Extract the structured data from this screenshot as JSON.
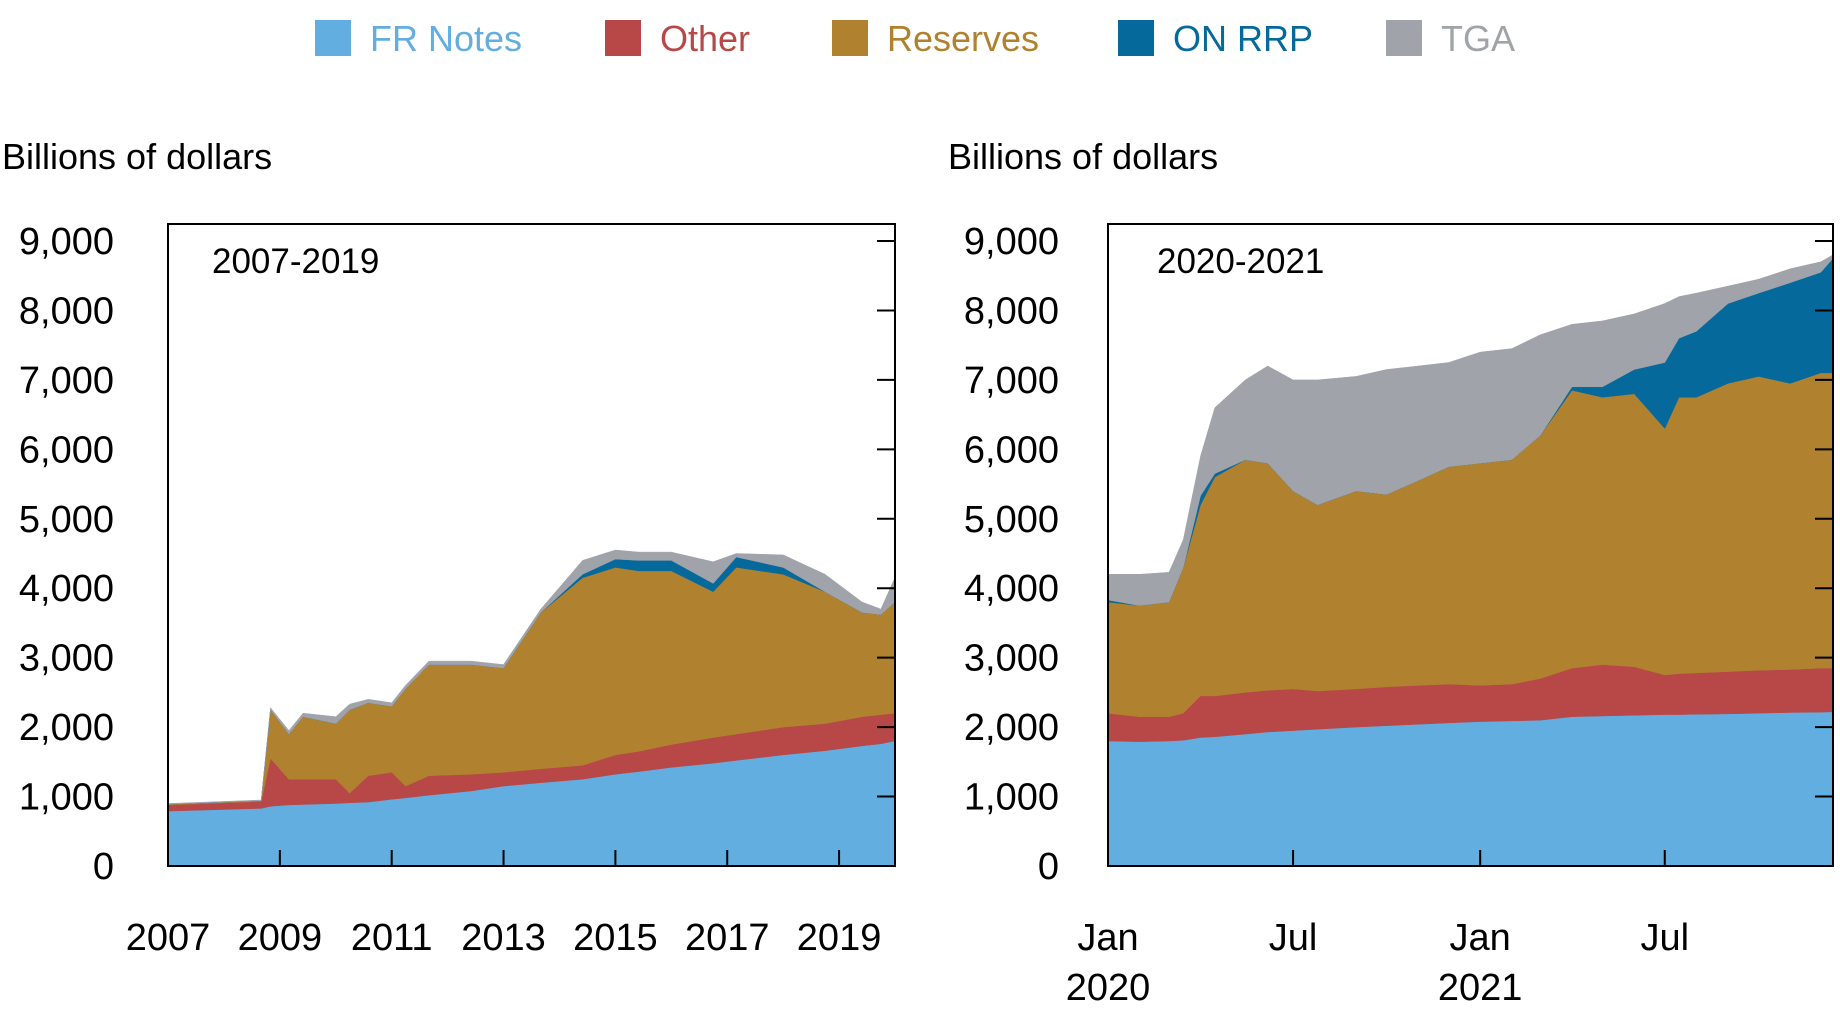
{
  "legend": [
    {
      "label": "FR Notes",
      "color": "#62aee0"
    },
    {
      "label": "Other",
      "color": "#b84848"
    },
    {
      "label": "Reserves",
      "color": "#b0812e"
    },
    {
      "label": "ON RRP",
      "color": "#06699c"
    },
    {
      "label": "TGA",
      "color": "#a0a3aa"
    }
  ],
  "chart_data": [
    {
      "type": "area",
      "stacked": true,
      "panel_label": "2007-2019",
      "ylabel": "Billions of dollars",
      "ylim": [
        0,
        9000
      ],
      "xlim": [
        "2007-01-01",
        "2020-01-01"
      ],
      "yticks": [
        "0",
        "1,000",
        "2,000",
        "3,000",
        "4,000",
        "5,000",
        "6,000",
        "7,000",
        "8,000",
        "9,000"
      ],
      "xticks": [
        {
          "date": "2007-01-01",
          "label": [
            "2007"
          ]
        },
        {
          "date": "2009-01-01",
          "label": [
            "2009"
          ]
        },
        {
          "date": "2011-01-01",
          "label": [
            "2011"
          ]
        },
        {
          "date": "2013-01-01",
          "label": [
            "2013"
          ]
        },
        {
          "date": "2015-01-01",
          "label": [
            "2015"
          ]
        },
        {
          "date": "2017-01-01",
          "label": [
            "2017"
          ]
        },
        {
          "date": "2019-01-01",
          "label": [
            "2019"
          ]
        }
      ],
      "x": [
        "2007-01-01",
        "2008-09-01",
        "2008-11-01",
        "2009-03-01",
        "2009-06-01",
        "2010-01-01",
        "2010-04-01",
        "2010-08-01",
        "2011-01-01",
        "2011-04-01",
        "2011-09-01",
        "2012-06-01",
        "2013-01-01",
        "2013-09-01",
        "2014-06-01",
        "2015-01-01",
        "2015-06-01",
        "2016-01-01",
        "2016-10-01",
        "2017-03-01",
        "2018-01-01",
        "2018-10-01",
        "2019-06-01",
        "2019-10-01",
        "2019-12-31"
      ],
      "series": [
        {
          "name": "FR Notes",
          "values": [
            790,
            830,
            860,
            880,
            885,
            900,
            910,
            920,
            960,
            980,
            1020,
            1080,
            1150,
            1200,
            1250,
            1320,
            1360,
            1420,
            1480,
            1520,
            1600,
            1660,
            1730,
            1760,
            1800
          ]
        },
        {
          "name": "Other",
          "values": [
            90,
            100,
            690,
            370,
            365,
            350,
            140,
            380,
            390,
            170,
            280,
            240,
            200,
            200,
            200,
            280,
            290,
            330,
            370,
            380,
            400,
            390,
            420,
            420,
            400
          ]
        },
        {
          "name": "Reserves",
          "values": [
            10,
            10,
            700,
            650,
            900,
            800,
            1200,
            1050,
            950,
            1400,
            1600,
            1580,
            1500,
            2250,
            2700,
            2700,
            2600,
            2500,
            2100,
            2400,
            2200,
            1900,
            1500,
            1440,
            1600
          ]
        },
        {
          "name": "ON RRP",
          "values": [
            0,
            0,
            0,
            0,
            0,
            0,
            0,
            0,
            0,
            0,
            0,
            0,
            0,
            0,
            50,
            120,
            150,
            150,
            120,
            150,
            100,
            0,
            0,
            0,
            0
          ]
        },
        {
          "name": "TGA",
          "values": [
            10,
            10,
            30,
            50,
            50,
            100,
            80,
            50,
            50,
            50,
            50,
            50,
            50,
            50,
            200,
            130,
            120,
            120,
            310,
            50,
            180,
            250,
            150,
            80,
            350
          ]
        }
      ]
    },
    {
      "type": "area",
      "stacked": true,
      "panel_label": "2020-2021",
      "ylabel": "Billions of dollars",
      "ylim": [
        0,
        9000
      ],
      "xlim": [
        "2020-01-01",
        "2021-12-13"
      ],
      "yticks": [
        "0",
        "1,000",
        "2,000",
        "3,000",
        "4,000",
        "5,000",
        "6,000",
        "7,000",
        "8,000",
        "9,000"
      ],
      "xticks": [
        {
          "date": "2020-01-01",
          "label": [
            "Jan",
            "2020"
          ]
        },
        {
          "date": "2020-07-01",
          "label": [
            "Jul"
          ]
        },
        {
          "date": "2021-01-01",
          "label": [
            "Jan",
            "2021"
          ]
        },
        {
          "date": "2021-07-01",
          "label": [
            "Jul"
          ]
        }
      ],
      "x": [
        "2020-01-01",
        "2020-02-01",
        "2020-03-01",
        "2020-03-15",
        "2020-04-01",
        "2020-04-15",
        "2020-05-15",
        "2020-06-06",
        "2020-07-01",
        "2020-07-25",
        "2020-09-01",
        "2020-10-01",
        "2020-11-01",
        "2020-12-01",
        "2021-01-01",
        "2021-02-01",
        "2021-03-01",
        "2021-04-01",
        "2021-05-01",
        "2021-06-01",
        "2021-07-01",
        "2021-07-15",
        "2021-08-01",
        "2021-09-01",
        "2021-10-01",
        "2021-11-01",
        "2021-12-01",
        "2021-12-13"
      ],
      "series": [
        {
          "name": "FR Notes",
          "values": [
            1800,
            1790,
            1800,
            1810,
            1850,
            1860,
            1900,
            1930,
            1950,
            1970,
            2000,
            2020,
            2040,
            2060,
            2080,
            2090,
            2100,
            2150,
            2160,
            2170,
            2180,
            2180,
            2185,
            2190,
            2200,
            2210,
            2215,
            2220
          ]
        },
        {
          "name": "Other",
          "values": [
            400,
            360,
            350,
            390,
            600,
            590,
            600,
            600,
            600,
            550,
            550,
            560,
            560,
            560,
            520,
            530,
            600,
            700,
            740,
            700,
            570,
            590,
            595,
            610,
            620,
            620,
            635,
            630
          ]
        },
        {
          "name": "Reserves",
          "values": [
            1600,
            1600,
            1650,
            2100,
            2750,
            3150,
            3350,
            3270,
            2850,
            2680,
            2850,
            2770,
            2950,
            3130,
            3200,
            3230,
            3500,
            4000,
            3850,
            3930,
            3550,
            3980,
            3970,
            4150,
            4230,
            4120,
            4250,
            4250
          ]
        },
        {
          "name": "ON RRP",
          "values": [
            30,
            0,
            0,
            0,
            130,
            50,
            0,
            0,
            0,
            0,
            0,
            0,
            0,
            0,
            0,
            0,
            0,
            50,
            150,
            350,
            950,
            850,
            950,
            1150,
            1200,
            1450,
            1450,
            1650
          ]
        },
        {
          "name": "TGA",
          "values": [
            370,
            450,
            430,
            400,
            570,
            950,
            1150,
            1400,
            1600,
            1800,
            1650,
            1800,
            1650,
            1500,
            1600,
            1600,
            1450,
            900,
            950,
            800,
            850,
            600,
            550,
            250,
            200,
            200,
            150,
            50
          ]
        }
      ]
    }
  ]
}
